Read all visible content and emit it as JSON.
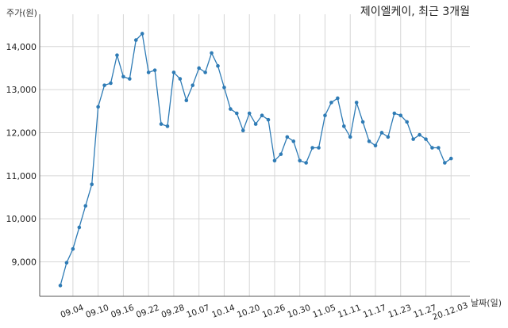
{
  "chart_data": {
    "type": "line",
    "title": "제이엘케이, 최근 3개월",
    "ylabel": "주가(원)",
    "xlabel": "날짜(일)",
    "ylim": [
      8200,
      14750
    ],
    "yticks": [
      9000,
      10000,
      11000,
      12000,
      13000,
      14000
    ],
    "ytick_labels": [
      "9,000",
      "10,000",
      "11,000",
      "12,000",
      "13,000",
      "14,000"
    ],
    "xticks": [
      {
        "index": 2,
        "label": "09.04"
      },
      {
        "index": 6,
        "label": "09.10"
      },
      {
        "index": 10,
        "label": "09.16"
      },
      {
        "index": 14,
        "label": "09.22"
      },
      {
        "index": 18,
        "label": "09.28"
      },
      {
        "index": 22,
        "label": "10.07"
      },
      {
        "index": 26,
        "label": "10.14"
      },
      {
        "index": 30,
        "label": "10.20"
      },
      {
        "index": 34,
        "label": "10.26"
      },
      {
        "index": 38,
        "label": "10.30"
      },
      {
        "index": 42,
        "label": "11.05"
      },
      {
        "index": 46,
        "label": "11.11"
      },
      {
        "index": 50,
        "label": "11.17"
      },
      {
        "index": 54,
        "label": "11.23"
      },
      {
        "index": 58,
        "label": "11.27"
      },
      {
        "index": 62,
        "label": "20.12.03"
      }
    ],
    "grid": true,
    "color": "#2e7bb5",
    "values": [
      8450,
      8980,
      9300,
      9800,
      10300,
      10800,
      12600,
      13100,
      13150,
      13800,
      13300,
      13250,
      14150,
      14300,
      13400,
      13450,
      12200,
      12150,
      13400,
      13250,
      12750,
      13100,
      13500,
      13400,
      13850,
      13550,
      13050,
      12550,
      12450,
      12050,
      12450,
      12200,
      12400,
      12300,
      11350,
      11500,
      11900,
      11800,
      11350,
      11300,
      11650,
      11650,
      12400,
      12700,
      12800,
      12150,
      11900,
      12700,
      12250,
      11800,
      11700,
      12000,
      11900,
      12450,
      12400,
      12250,
      11850,
      11950,
      11850,
      11650,
      11650,
      11300,
      11400
    ]
  }
}
